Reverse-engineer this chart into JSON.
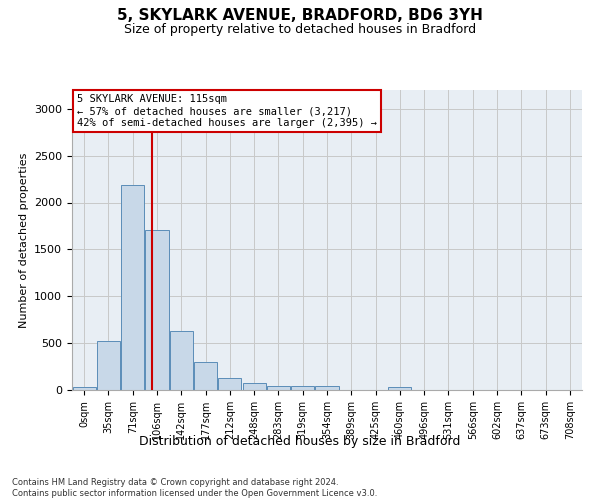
{
  "title1": "5, SKYLARK AVENUE, BRADFORD, BD6 3YH",
  "title2": "Size of property relative to detached houses in Bradford",
  "xlabel": "Distribution of detached houses by size in Bradford",
  "ylabel": "Number of detached properties",
  "bar_color": "#c8d8e8",
  "bar_edge_color": "#5b8db8",
  "bin_labels": [
    "0sqm",
    "35sqm",
    "71sqm",
    "106sqm",
    "142sqm",
    "177sqm",
    "212sqm",
    "248sqm",
    "283sqm",
    "319sqm",
    "354sqm",
    "389sqm",
    "425sqm",
    "460sqm",
    "496sqm",
    "531sqm",
    "566sqm",
    "602sqm",
    "637sqm",
    "673sqm",
    "708sqm"
  ],
  "bar_values": [
    30,
    520,
    2190,
    1710,
    630,
    295,
    130,
    75,
    45,
    40,
    45,
    5,
    5,
    30,
    5,
    5,
    5,
    5,
    5,
    5,
    5
  ],
  "vline_x": 2.78,
  "annotation_text": "5 SKYLARK AVENUE: 115sqm\n← 57% of detached houses are smaller (3,217)\n42% of semi-detached houses are larger (2,395) →",
  "annotation_box_color": "#ffffff",
  "annotation_border_color": "#cc0000",
  "vline_color": "#cc0000",
  "ylim": [
    0,
    3200
  ],
  "yticks": [
    0,
    500,
    1000,
    1500,
    2000,
    2500,
    3000
  ],
  "footer_line1": "Contains HM Land Registry data © Crown copyright and database right 2024.",
  "footer_line2": "Contains public sector information licensed under the Open Government Licence v3.0.",
  "grid_color": "#c8c8c8",
  "background_color": "#e8eef4"
}
